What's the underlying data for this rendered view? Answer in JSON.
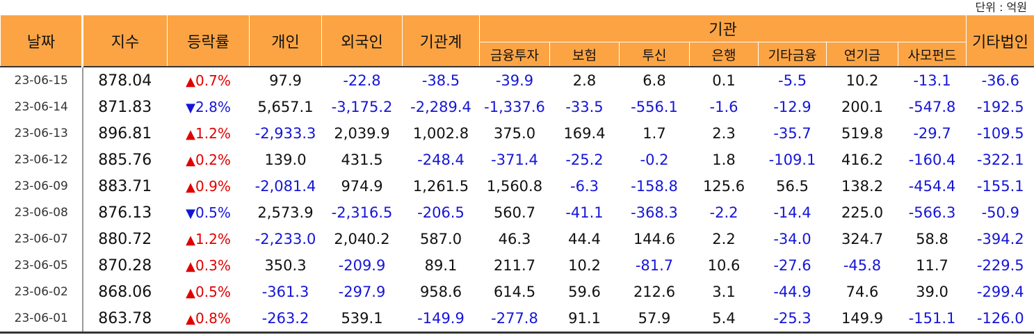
{
  "unit_label": "단위 : 억원",
  "headers": {
    "date": "날짜",
    "index": "지수",
    "change": "등락률",
    "individual": "개인",
    "foreign": "외국인",
    "institution_total": "기관계",
    "institution_group": "기관",
    "institution_subs": [
      "금융투자",
      "보험",
      "투신",
      "은행",
      "기타금융",
      "연기금",
      "사모펀드"
    ],
    "other_corp": "기타법인"
  },
  "rows": [
    {
      "date": "23-06-15",
      "index": "878.04",
      "dir": "▲",
      "chg": "0.7%",
      "cells": [
        "97.9",
        "-22.8",
        "-38.5",
        "-39.9",
        "2.8",
        "6.8",
        "0.1",
        "-5.5",
        "10.2",
        "-13.1",
        "-36.6"
      ]
    },
    {
      "date": "23-06-14",
      "index": "871.83",
      "dir": "▼",
      "chg": "2.8%",
      "cells": [
        "5,657.1",
        "-3,175.2",
        "-2,289.4",
        "-1,337.6",
        "-33.5",
        "-556.1",
        "-1.6",
        "-12.9",
        "200.1",
        "-547.8",
        "-192.5"
      ]
    },
    {
      "date": "23-06-13",
      "index": "896.81",
      "dir": "▲",
      "chg": "1.2%",
      "cells": [
        "-2,933.3",
        "2,039.9",
        "1,002.8",
        "375.0",
        "169.4",
        "1.7",
        "2.3",
        "-35.7",
        "519.8",
        "-29.7",
        "-109.5"
      ]
    },
    {
      "date": "23-06-12",
      "index": "885.76",
      "dir": "▲",
      "chg": "0.2%",
      "cells": [
        "139.0",
        "431.5",
        "-248.4",
        "-371.4",
        "-25.2",
        "-0.2",
        "1.8",
        "-109.1",
        "416.2",
        "-160.4",
        "-322.1"
      ]
    },
    {
      "date": "23-06-09",
      "index": "883.71",
      "dir": "▲",
      "chg": "0.9%",
      "cells": [
        "-2,081.4",
        "974.9",
        "1,261.5",
        "1,560.8",
        "-6.3",
        "-158.8",
        "125.6",
        "56.5",
        "138.2",
        "-454.4",
        "-155.1"
      ]
    },
    {
      "date": "23-06-08",
      "index": "876.13",
      "dir": "▼",
      "chg": "0.5%",
      "cells": [
        "2,573.9",
        "-2,316.5",
        "-206.5",
        "560.7",
        "-41.1",
        "-368.3",
        "-2.2",
        "-14.4",
        "225.0",
        "-566.3",
        "-50.9"
      ]
    },
    {
      "date": "23-06-07",
      "index": "880.72",
      "dir": "▲",
      "chg": "1.2%",
      "cells": [
        "-2,233.0",
        "2,040.2",
        "587.0",
        "46.3",
        "44.4",
        "144.6",
        "2.2",
        "-34.0",
        "324.7",
        "58.8",
        "-394.2"
      ]
    },
    {
      "date": "23-06-05",
      "index": "870.28",
      "dir": "▲",
      "chg": "0.3%",
      "cells": [
        "350.3",
        "-209.9",
        "89.1",
        "211.7",
        "10.2",
        "-81.7",
        "10.6",
        "-27.6",
        "-45.8",
        "11.7",
        "-229.5"
      ]
    },
    {
      "date": "23-06-02",
      "index": "868.06",
      "dir": "▲",
      "chg": "0.5%",
      "cells": [
        "-361.3",
        "-297.9",
        "958.6",
        "614.5",
        "59.6",
        "212.6",
        "3.1",
        "-44.9",
        "74.6",
        "39.0",
        "-299.4"
      ]
    },
    {
      "date": "23-06-01",
      "index": "863.78",
      "dir": "▲",
      "chg": "0.8%",
      "cells": [
        "-263.2",
        "539.1",
        "-149.9",
        "-277.8",
        "91.1",
        "57.9",
        "5.4",
        "-25.3",
        "149.9",
        "-151.1",
        "-126.0"
      ]
    }
  ],
  "colors": {
    "header_bg": "#fca444",
    "negative": "#1515d8",
    "change": "#e00000"
  }
}
